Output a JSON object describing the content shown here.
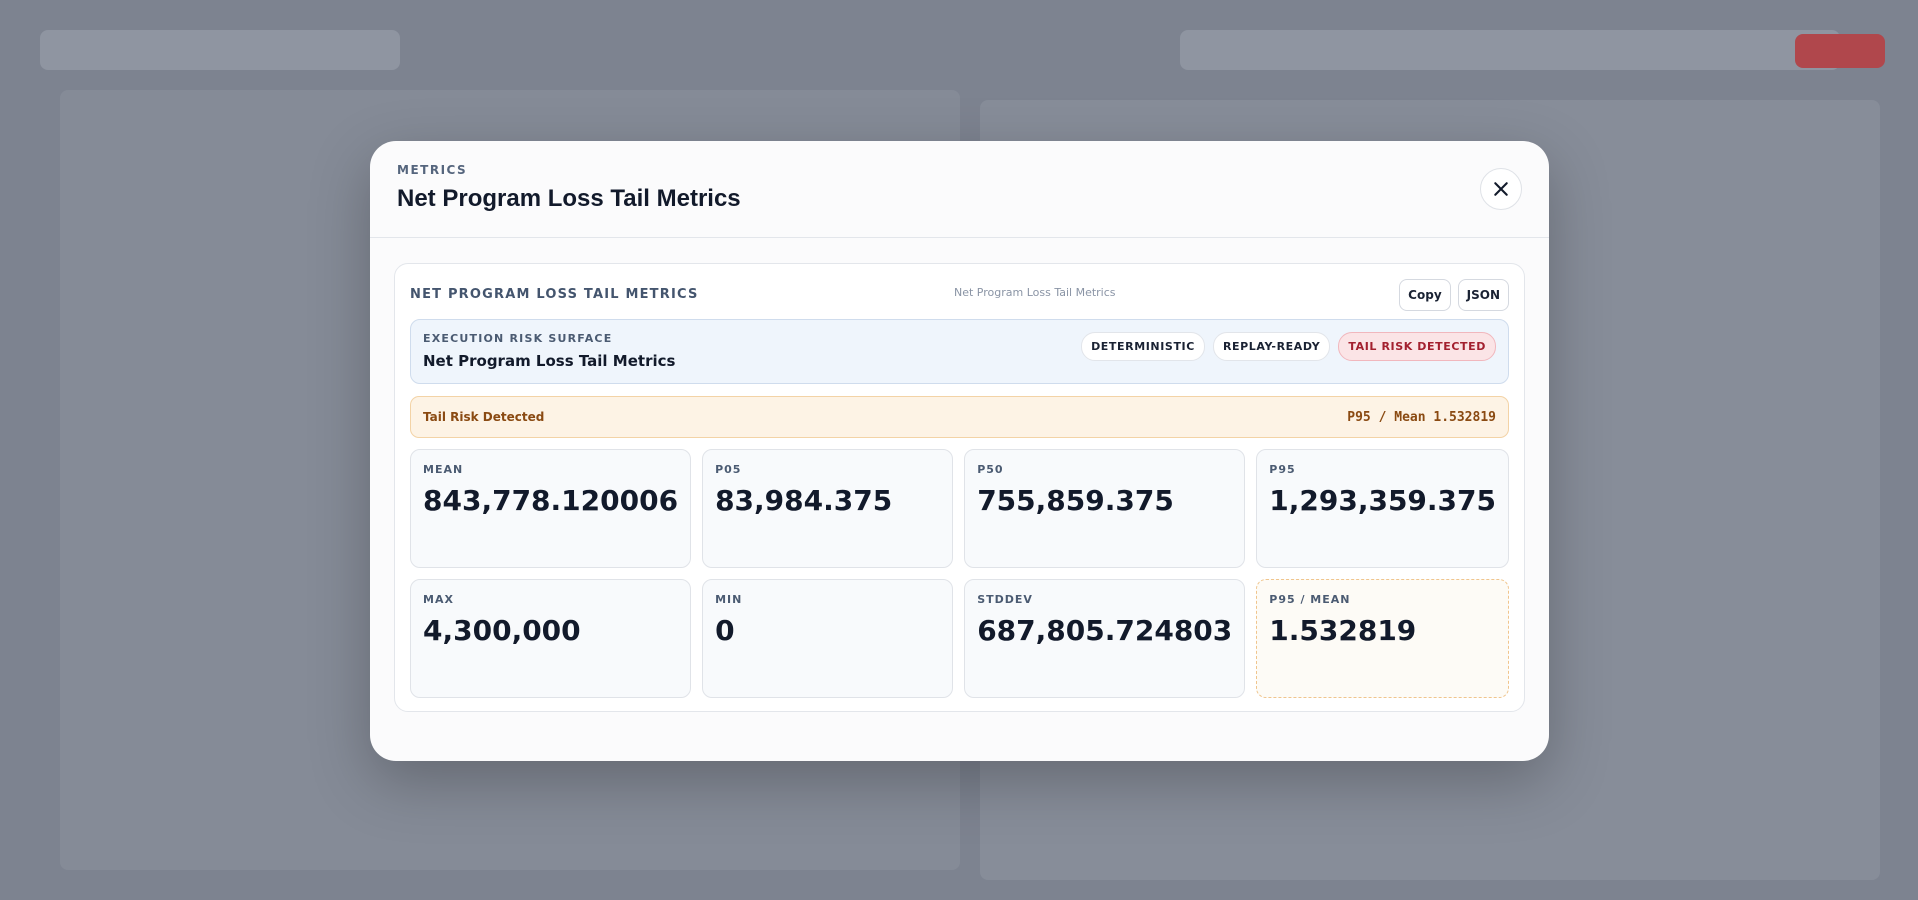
{
  "modal": {
    "eyebrow": "METRICS",
    "title": "Net Program Loss Tail Metrics"
  },
  "panel": {
    "title": "NET PROGRAM LOSS TAIL METRICS",
    "subtitle": "Net Program Loss Tail Metrics",
    "buttons": [
      "Copy",
      "JSON"
    ]
  },
  "surface": {
    "eyebrow": "EXECUTION RISK SURFACE",
    "title": "Net Program Loss Tail Metrics",
    "badges": [
      "DETERMINISTIC",
      "REPLAY-READY",
      "TAIL RISK DETECTED"
    ]
  },
  "alert": {
    "label": "Tail Risk Detected",
    "value": "P95 / Mean 1.532819"
  },
  "metrics": [
    {
      "label": "MEAN",
      "value": "843,778.120006"
    },
    {
      "label": "P05",
      "value": "83,984.375"
    },
    {
      "label": "P50",
      "value": "755,859.375"
    },
    {
      "label": "P95",
      "value": "1,293,359.375"
    },
    {
      "label": "MAX",
      "value": "4,300,000"
    },
    {
      "label": "MIN",
      "value": "0"
    },
    {
      "label": "STDDEV",
      "value": "687,805.724803"
    },
    {
      "label": "P95 / MEAN",
      "value": "1.532819"
    }
  ]
}
